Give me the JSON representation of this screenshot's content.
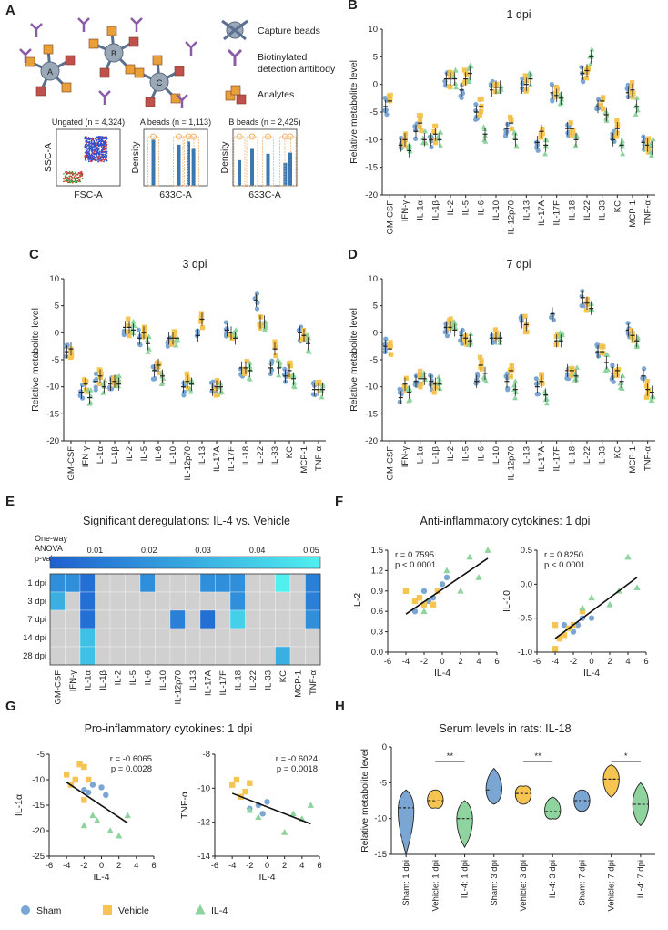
{
  "colors": {
    "sham": "#7ba6d4",
    "vehicle": "#f5c451",
    "il4": "#8fd39e",
    "grey": "#d0d0d0",
    "accent": "#1f77d0"
  },
  "cytokines": [
    "GM-CSF",
    "IFN-γ",
    "IL-1α",
    "IL-1β",
    "IL-2",
    "IL-5",
    "IL-6",
    "IL-10",
    "IL-12p70",
    "IL-13",
    "IL-17A",
    "IL-17F",
    "IL-18",
    "IL-22",
    "IL-33",
    "KC",
    "MCP-1",
    "TNF-α"
  ],
  "panelA": {
    "letter": "A",
    "legend": {
      "capture": "Capture beads",
      "detection": "Biotinylated detection antibody",
      "analytes": "Analytes"
    },
    "bead_labels": [
      "A",
      "B",
      "C"
    ],
    "plots": [
      {
        "title": "Ungated (n = 4,324)",
        "xlabel": "FSC-A",
        "ylabel": "SSC-A"
      },
      {
        "title": "A beads (n = 1,113)",
        "xlabel": "633C-A",
        "ylabel": "Density"
      },
      {
        "title": "B beads (n = 2,425)",
        "xlabel": "633C-A",
        "ylabel": "Density"
      }
    ]
  },
  "chart_data": [
    {
      "panel": "B",
      "type": "scatter",
      "title": "1 dpi",
      "ylabel": "Relative metabolite level",
      "ylim": [
        -20,
        10
      ],
      "yticks": [
        "10",
        "5",
        "0",
        "-5",
        "-10",
        "-15",
        "-20"
      ],
      "means": {
        "sham": [
          -4,
          -11,
          -8.5,
          -10,
          1,
          -1,
          -5,
          -1,
          -8,
          -0.5,
          -10.5,
          -1.5,
          -8,
          2,
          -4,
          -10,
          -1.5,
          -10.5
        ],
        "vehicle": [
          -3,
          -10,
          -7,
          -9,
          1,
          1,
          -4,
          -0.5,
          -7,
          0,
          -8.5,
          -2,
          -8,
          2.5,
          -3,
          -8,
          -1,
          -11
        ],
        "il4": [
          null,
          -12,
          -10,
          -10,
          1,
          2,
          -9,
          -0.5,
          -10,
          1,
          -11,
          -2.5,
          -10,
          5,
          -5.5,
          -11,
          -4,
          -11.5
        ]
      }
    },
    {
      "panel": "C",
      "type": "scatter",
      "title": "3 dpi",
      "ylabel": "Relative metabolite level",
      "ylim": [
        -20,
        10
      ],
      "yticks": [
        "10",
        "5",
        "0",
        "-5",
        "-10",
        "-15",
        "-20"
      ],
      "means": {
        "sham": [
          -3.5,
          -11,
          -9,
          -9.5,
          1,
          -1,
          -7,
          -1,
          -10,
          -0.5,
          -10.5,
          0.5,
          -6.5,
          6,
          -6.5,
          -8,
          0,
          -10.5
        ],
        "vehicle": [
          -3,
          -9.5,
          -8,
          -9,
          1,
          0,
          -6,
          -1,
          -9,
          2.5,
          -10,
          0,
          -6.5,
          2,
          -3,
          -7,
          -0.5,
          -10.5
        ],
        "il4": [
          null,
          -12,
          -10,
          -9.5,
          0.5,
          -2,
          -8,
          -1,
          -9.5,
          null,
          -10,
          -1,
          -7,
          2,
          -6.5,
          -8.5,
          -2,
          -10.5
        ]
      }
    },
    {
      "panel": "D",
      "type": "scatter",
      "title": "7 dpi",
      "ylabel": "Relative metabolite level",
      "ylim": [
        -20,
        10
      ],
      "yticks": [
        "10",
        "5",
        "0",
        "-5",
        "-10",
        "-15",
        "-20"
      ],
      "means": {
        "sham": [
          -2.5,
          -12,
          -9,
          -9,
          1,
          -0.5,
          -9,
          -1,
          -9,
          2,
          -10,
          3.5,
          -7,
          6.5,
          -3.5,
          -7.5,
          0.5,
          -8
        ],
        "vehicle": [
          -3,
          -9.5,
          -8.5,
          -9.5,
          1,
          -1,
          -6,
          -1,
          -7,
          1.5,
          -9,
          -1.5,
          -7,
          5.5,
          -3.5,
          -7,
          -0.5,
          -10.5
        ],
        "il4": [
          null,
          -11,
          -8.5,
          -9.5,
          0.5,
          -1.5,
          -7.5,
          -1,
          -10.5,
          null,
          -11.5,
          -1.5,
          -8,
          4.5,
          -5.5,
          -9,
          -1.5,
          -11
        ]
      }
    },
    {
      "panel": "E",
      "type": "heatmap",
      "title": "Significant deregulations: IL-4 vs. Vehicle",
      "colorbar_label": [
        "One-way",
        "ANOVA",
        "p-values"
      ],
      "colorbar_ticks": [
        "0.01",
        "0.02",
        "0.03",
        "0.04",
        "0.05"
      ],
      "rows": [
        "1 dpi",
        "3 dpi",
        "7 dpi",
        "14 dpi",
        "28 dpi"
      ],
      "values": [
        [
          0.02,
          0.02,
          0.01,
          null,
          null,
          null,
          0.02,
          null,
          null,
          null,
          0.02,
          0.02,
          0.02,
          null,
          null,
          0.05,
          null,
          0.015
        ],
        [
          0.03,
          null,
          0.01,
          null,
          null,
          null,
          null,
          null,
          null,
          null,
          null,
          null,
          0.02,
          null,
          null,
          null,
          null,
          0.015
        ],
        [
          null,
          null,
          0.01,
          null,
          null,
          null,
          null,
          null,
          0.015,
          null,
          0.01,
          null,
          0.04,
          null,
          null,
          null,
          null,
          0.02
        ],
        [
          null,
          null,
          0.035,
          null,
          null,
          null,
          null,
          null,
          null,
          null,
          null,
          null,
          null,
          null,
          null,
          null,
          null,
          null
        ],
        [
          null,
          null,
          0.035,
          null,
          null,
          null,
          null,
          null,
          null,
          null,
          null,
          null,
          null,
          null,
          null,
          0.03,
          null,
          null
        ]
      ]
    },
    {
      "panel": "F",
      "type": "scatter",
      "title": "Anti-inflammatory cytokines: 1 dpi",
      "plots": [
        {
          "ylabel": "IL-2",
          "xlabel": "IL-4",
          "stat_r": "r = 0.7595",
          "stat_p": "p < 0.0001",
          "xlim": [
            -6,
            6
          ],
          "ylim": [
            0,
            1.5
          ],
          "xticks": [
            "-6",
            "-4",
            "-2",
            "0",
            "2",
            "4",
            "6"
          ],
          "yticks": [
            "1.5",
            "1.2",
            "0.9",
            "0.6",
            "0.3",
            "0.0"
          ],
          "fit": [
            [
              -4,
              0.56
            ],
            [
              5,
              1.38
            ]
          ],
          "sham": [
            [
              -1,
              0.8
            ],
            [
              -2,
              0.9
            ],
            [
              0,
              1.0
            ],
            [
              -3,
              0.6
            ],
            [
              -1.5,
              0.75
            ],
            [
              0.5,
              1.1
            ]
          ],
          "vehicle": [
            [
              -4,
              0.9
            ],
            [
              -2.5,
              0.8
            ],
            [
              -2,
              0.7
            ],
            [
              -1,
              0.7
            ],
            [
              -0.5,
              0.9
            ],
            [
              -3,
              0.75
            ]
          ],
          "il4": [
            [
              3,
              1.4
            ],
            [
              4,
              1.1
            ],
            [
              5,
              1.5
            ],
            [
              -2,
              0.6
            ],
            [
              0.5,
              1.2
            ],
            [
              2,
              0.9
            ]
          ]
        },
        {
          "ylabel": "IL-10",
          "xlabel": "IL-4",
          "stat_r": "r = 0.8250",
          "stat_p": "p < 0.0001",
          "xlim": [
            -6,
            6
          ],
          "ylim": [
            -1.0,
            0.5
          ],
          "xticks": [
            "-6",
            "-4",
            "-2",
            "0",
            "2",
            "4",
            "6"
          ],
          "yticks": [
            "0.5",
            "0.0",
            "-0.5",
            "-1.0"
          ],
          "fit": [
            [
              -4,
              -0.8
            ],
            [
              5,
              0.1
            ]
          ],
          "sham": [
            [
              -2,
              -0.7
            ],
            [
              -1,
              -0.5
            ],
            [
              0,
              -0.5
            ],
            [
              -3,
              -0.6
            ],
            [
              -1.5,
              -0.6
            ]
          ],
          "vehicle": [
            [
              -4,
              -0.6
            ],
            [
              -3.5,
              -0.8
            ],
            [
              -2.5,
              -0.65
            ],
            [
              -2,
              -0.6
            ],
            [
              -1,
              -0.4
            ],
            [
              -3,
              -0.75
            ],
            [
              -4,
              -0.95
            ]
          ],
          "il4": [
            [
              4,
              0.4
            ],
            [
              5,
              -0.05
            ],
            [
              3,
              -0.1
            ],
            [
              2,
              -0.3
            ],
            [
              0,
              -0.2
            ],
            [
              -1,
              -0.35
            ]
          ]
        }
      ]
    },
    {
      "panel": "G",
      "type": "scatter",
      "title": "Pro-inflammatory cytokines: 1 dpi",
      "plots": [
        {
          "ylabel": "IL-1α",
          "xlabel": "IL-4",
          "stat_r": "r = -0.6065",
          "stat_p": "p = 0.0028",
          "xlim": [
            -6,
            6
          ],
          "ylim": [
            -25,
            -5
          ],
          "xticks": [
            "-6",
            "-4",
            "-2",
            "0",
            "2",
            "4",
            "6"
          ],
          "yticks": [
            "-5",
            "-10",
            "-15",
            "-20",
            "-25"
          ],
          "fit": [
            [
              -4,
              -10.5
            ],
            [
              3,
              -18.5
            ]
          ],
          "sham": [
            [
              -2,
              -12
            ],
            [
              -1,
              -11
            ],
            [
              0,
              -11.5
            ],
            [
              -3,
              -10
            ],
            [
              -1.5,
              -12.5
            ],
            [
              0.5,
              -13
            ]
          ],
          "vehicle": [
            [
              -4,
              -9
            ],
            [
              -2.5,
              -7
            ],
            [
              -2,
              -7.5
            ],
            [
              -3,
              -10
            ],
            [
              -3.5,
              -11
            ],
            [
              -2,
              -14
            ],
            [
              -1.5,
              -10
            ]
          ],
          "il4": [
            [
              3,
              -17
            ],
            [
              -1,
              -17
            ],
            [
              1,
              -20
            ],
            [
              2,
              -21
            ],
            [
              -2,
              -19
            ],
            [
              -0.5,
              -18
            ]
          ]
        },
        {
          "ylabel": "TNF-α",
          "xlabel": "IL-4",
          "stat_r": "r = -0.6024",
          "stat_p": "p = 0.0018",
          "xlim": [
            -6,
            6
          ],
          "ylim": [
            -14,
            -8
          ],
          "xticks": [
            "-6",
            "-4",
            "-2",
            "0",
            "2",
            "4",
            "6"
          ],
          "yticks": [
            "-8",
            "-10",
            "-12",
            "-14"
          ],
          "fit": [
            [
              -4,
              -10.3
            ],
            [
              5,
              -12.1
            ]
          ],
          "sham": [
            [
              -1,
              -11
            ],
            [
              0,
              -10.8
            ],
            [
              -2,
              -11.2
            ],
            [
              -3,
              -10.5
            ],
            [
              -0.5,
              -11.5
            ]
          ],
          "vehicle": [
            [
              -4,
              -9.8
            ],
            [
              -3.5,
              -9.5
            ],
            [
              -2.5,
              -10.2
            ],
            [
              -2,
              -9.7
            ],
            [
              -3,
              -10.5
            ]
          ],
          "il4": [
            [
              3,
              -11.5
            ],
            [
              4,
              -11.8
            ],
            [
              5,
              -11.0
            ],
            [
              2,
              -12.6
            ],
            [
              -2,
              -11.3
            ],
            [
              -1,
              -11.7
            ]
          ]
        }
      ]
    },
    {
      "panel": "H",
      "type": "violin",
      "title": "Serum levels in rats: IL-18",
      "ylabel": "Relative metabolite level",
      "ylim": [
        -15,
        0
      ],
      "yticks": [
        "0",
        "-5",
        "-10",
        "-15"
      ],
      "categories": [
        "Sham: 1 dpi",
        "Vehicle: 1 dpi",
        "IL-4: 1 dpi",
        "Sham: 3 dpi",
        "Vehicle: 3 dpi",
        "IL-4: 3 dpi",
        "Sham: 7 dpi",
        "Vehicle: 7 dpi",
        "IL-4: 7 dpi"
      ],
      "groups": [
        "sham",
        "vehicle",
        "il4",
        "sham",
        "vehicle",
        "il4",
        "sham",
        "vehicle",
        "il4"
      ],
      "medians": [
        -8.5,
        -7.5,
        -10,
        -6,
        -6.5,
        -9,
        -7.5,
        -4.5,
        -8
      ],
      "ranges": [
        [
          -15,
          -6
        ],
        [
          -8.5,
          -6
        ],
        [
          -14,
          -7.5
        ],
        [
          -8,
          -3
        ],
        [
          -8,
          -5.5
        ],
        [
          -10,
          -7
        ],
        [
          -9,
          -6
        ],
        [
          -7,
          -2.5
        ],
        [
          -11,
          -5
        ]
      ],
      "significance": [
        {
          "pair": [
            1,
            2
          ],
          "label": "**"
        },
        {
          "pair": [
            4,
            5
          ],
          "label": "**"
        },
        {
          "pair": [
            7,
            8
          ],
          "label": "*"
        }
      ]
    }
  ],
  "legend": {
    "sham": "Sham",
    "vehicle": "Vehicle",
    "il4": "IL-4"
  }
}
